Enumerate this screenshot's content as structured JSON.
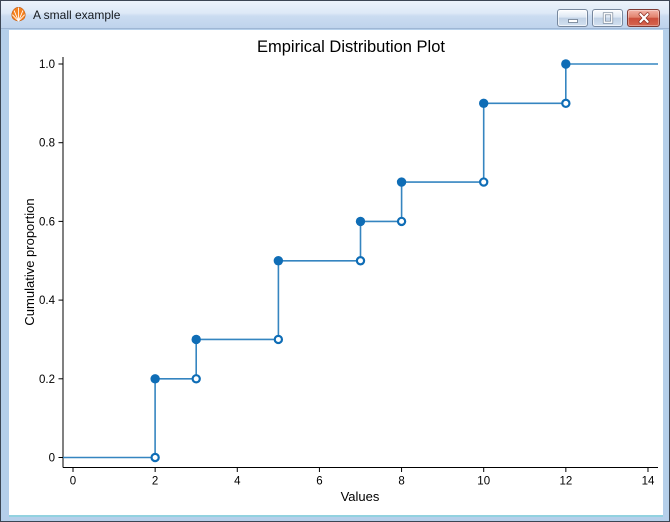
{
  "window": {
    "title": "A small example",
    "app_icon": "orange-shell",
    "buttons": {
      "minimize": "minimize",
      "maximize": "maximize",
      "close": "close"
    }
  },
  "chart_data": {
    "type": "line",
    "subtype": "ecdf-step",
    "title": "Empirical Distribution Plot",
    "xlabel": "Values",
    "ylabel": "Cumulative proportion",
    "x_tick_values": [
      0,
      2,
      4,
      6,
      8,
      10,
      12,
      14
    ],
    "x_tick_labels": [
      "0",
      "2",
      "4",
      "6",
      "8",
      "10",
      "12",
      "14"
    ],
    "y_tick_values": [
      0,
      0.2,
      0.4,
      0.6,
      0.8,
      1.0
    ],
    "y_tick_labels": [
      "0",
      "0.2",
      "0.4",
      "0.6",
      "0.8",
      "1.0"
    ],
    "xlim": [
      -0.25,
      14.25
    ],
    "ylim": [
      -0.026,
      1.018
    ],
    "grid": false,
    "legend": false,
    "steps": [
      {
        "x": 2,
        "from": 0.0,
        "to": 0.2
      },
      {
        "x": 3,
        "from": 0.2,
        "to": 0.3
      },
      {
        "x": 5,
        "from": 0.3,
        "to": 0.5
      },
      {
        "x": 7,
        "from": 0.5,
        "to": 0.6
      },
      {
        "x": 8,
        "from": 0.6,
        "to": 0.7
      },
      {
        "x": 10,
        "from": 0.7,
        "to": 0.9
      },
      {
        "x": 12,
        "from": 0.9,
        "to": 1.0
      }
    ],
    "filled_points": [
      [
        2,
        0.2
      ],
      [
        3,
        0.3
      ],
      [
        5,
        0.5
      ],
      [
        7,
        0.6
      ],
      [
        8,
        0.7
      ],
      [
        10,
        0.9
      ],
      [
        12,
        1.0
      ]
    ],
    "open_points": [
      [
        2,
        0.0
      ],
      [
        3,
        0.2
      ],
      [
        5,
        0.3
      ],
      [
        7,
        0.5
      ],
      [
        8,
        0.6
      ],
      [
        10,
        0.7
      ],
      [
        12,
        0.9
      ]
    ],
    "line_color": "#3585c0",
    "marker_color": "#0f6db6",
    "axis_color": "#000000"
  }
}
